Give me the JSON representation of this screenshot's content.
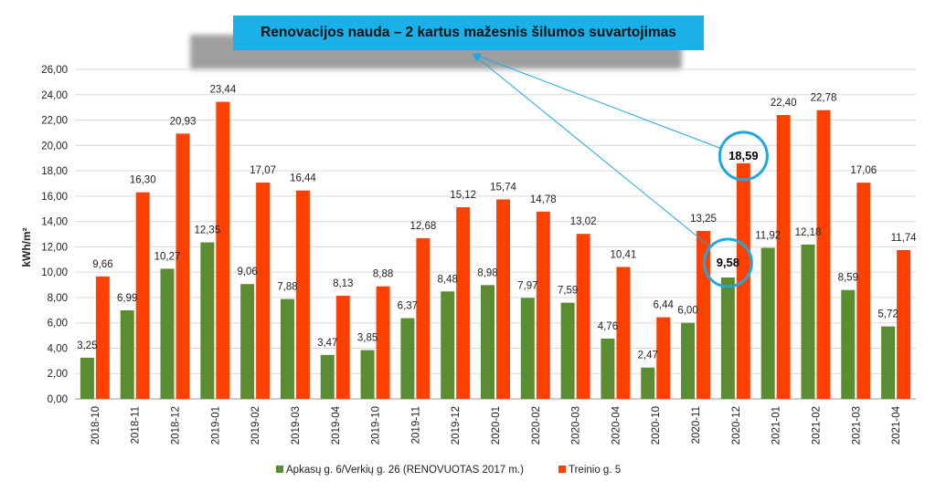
{
  "banner": {
    "title": "Renovacijos nauda – 2 kartus mažesnis šilumos suvartojimas"
  },
  "colors": {
    "green": "#5b8c32",
    "orange": "#fe4000",
    "highlight": "#1fa8e0"
  },
  "chart_data": {
    "type": "bar",
    "title": "Renovacijos nauda – 2 kartus mažesnis šilumos suvartojimas",
    "xlabel": "",
    "ylabel": "kWh/m²",
    "ylim": [
      0,
      26
    ],
    "yticks": [
      "0,00",
      "2,00",
      "4,00",
      "6,00",
      "8,00",
      "10,00",
      "12,00",
      "14,00",
      "16,00",
      "18,00",
      "20,00",
      "22,00",
      "24,00",
      "26,00"
    ],
    "grid": true,
    "legend_position": "bottom",
    "categories": [
      "2018-10",
      "2018-11",
      "2018-12",
      "2019-01",
      "2019-02",
      "2019-03",
      "2019-04",
      "2019-10",
      "2019-11",
      "2019-12",
      "2020-01",
      "2020-02",
      "2020-03",
      "2020-04",
      "2020-10",
      "2020-11",
      "2020-12",
      "2021-01",
      "2021-02",
      "2021-03",
      "2021-04"
    ],
    "series": [
      {
        "name": "Apkasų g. 6/Verkių g. 26 (RENOVUOTAS 2017 m.)",
        "values": [
          3.25,
          6.99,
          10.27,
          12.35,
          9.06,
          7.88,
          3.47,
          3.85,
          6.37,
          8.48,
          8.98,
          7.97,
          7.59,
          4.76,
          2.47,
          6.0,
          9.58,
          11.92,
          12.18,
          8.59,
          5.72
        ],
        "labels": [
          "3,25",
          "6,99",
          "10,27",
          "12,35",
          "9,06",
          "7,88",
          "3,47",
          "3,85",
          "6,37",
          "8,48",
          "8,98",
          "7,97",
          "7,59",
          "4,76",
          "2,47",
          "6,00",
          "9,58",
          "11,92",
          "12,18",
          "8,59",
          "5,72"
        ]
      },
      {
        "name": "Treinio g. 5",
        "values": [
          9.66,
          16.3,
          20.93,
          23.44,
          17.07,
          16.44,
          8.13,
          8.88,
          12.68,
          15.12,
          15.74,
          14.78,
          13.02,
          10.41,
          6.44,
          13.25,
          18.59,
          22.4,
          22.78,
          17.06,
          11.74
        ],
        "labels": [
          "9,66",
          "16,30",
          "20,93",
          "23,44",
          "17,07",
          "16,44",
          "8,13",
          "8,88",
          "12,68",
          "15,12",
          "15,74",
          "14,78",
          "13,02",
          "10,41",
          "6,44",
          "13,25",
          "18,59",
          "22,40",
          "22,78",
          "17,06",
          "11,74"
        ]
      }
    ],
    "highlighted": [
      "2020-12"
    ]
  }
}
